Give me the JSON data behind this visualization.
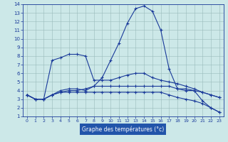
{
  "xlabel": "Graphe des températures (°c)",
  "bg_color": "#cce8e8",
  "grid_color": "#99bbbb",
  "line_color": "#1a3a9a",
  "xlabel_bg": "#2255aa",
  "xlabel_fg": "#ffffff",
  "xlim": [
    -0.5,
    23.5
  ],
  "ylim": [
    1,
    14
  ],
  "xticks": [
    0,
    1,
    2,
    3,
    4,
    5,
    6,
    7,
    8,
    9,
    10,
    11,
    12,
    13,
    14,
    15,
    16,
    17,
    18,
    19,
    20,
    21,
    22,
    23
  ],
  "yticks": [
    1,
    2,
    3,
    4,
    5,
    6,
    7,
    8,
    9,
    10,
    11,
    12,
    13,
    14
  ],
  "line1_x": [
    0,
    1,
    2,
    3,
    4,
    5,
    6,
    7,
    8,
    9,
    10,
    11,
    12,
    13,
    14,
    15,
    16,
    17,
    18,
    19,
    20,
    21,
    22,
    23
  ],
  "line1_y": [
    3.5,
    3.0,
    3.0,
    3.5,
    4.0,
    4.2,
    4.2,
    4.0,
    4.5,
    5.5,
    7.5,
    9.5,
    11.8,
    13.5,
    13.8,
    13.2,
    11.0,
    6.5,
    4.2,
    4.2,
    4.0,
    2.8,
    2.0,
    1.5
  ],
  "line2_x": [
    0,
    1,
    2,
    3,
    4,
    5,
    6,
    7,
    8,
    9,
    10,
    11,
    12,
    13,
    14,
    15,
    16,
    17,
    18,
    19,
    20,
    21,
    22,
    23
  ],
  "line2_y": [
    3.5,
    3.0,
    3.0,
    7.5,
    7.8,
    8.2,
    8.2,
    8.0,
    5.2,
    5.2,
    5.2,
    5.5,
    5.8,
    6.0,
    6.0,
    5.5,
    5.2,
    5.0,
    4.8,
    4.5,
    4.2,
    3.8,
    3.5,
    3.2
  ],
  "line3_x": [
    0,
    1,
    2,
    3,
    4,
    5,
    6,
    7,
    8,
    9,
    10,
    11,
    12,
    13,
    14,
    15,
    16,
    17,
    18,
    19,
    20,
    21,
    22,
    23
  ],
  "line3_y": [
    3.5,
    3.0,
    3.0,
    3.5,
    3.8,
    4.0,
    4.0,
    4.2,
    4.5,
    4.5,
    4.5,
    4.5,
    4.5,
    4.5,
    4.5,
    4.5,
    4.5,
    4.5,
    4.2,
    4.0,
    4.0,
    3.8,
    3.5,
    3.2
  ],
  "line4_x": [
    0,
    1,
    2,
    3,
    4,
    5,
    6,
    7,
    8,
    9,
    10,
    11,
    12,
    13,
    14,
    15,
    16,
    17,
    18,
    19,
    20,
    21,
    22,
    23
  ],
  "line4_y": [
    3.5,
    3.0,
    3.0,
    3.5,
    3.8,
    3.8,
    3.8,
    3.8,
    3.8,
    3.8,
    3.8,
    3.8,
    3.8,
    3.8,
    3.8,
    3.8,
    3.8,
    3.5,
    3.2,
    3.0,
    2.8,
    2.5,
    2.0,
    1.5
  ],
  "marker": "+"
}
